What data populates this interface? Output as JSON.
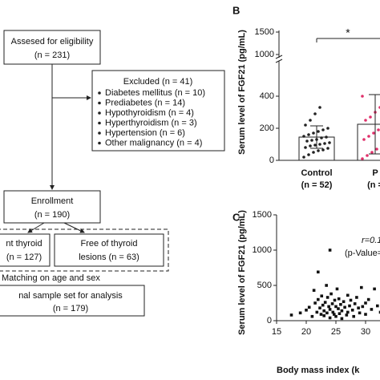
{
  "flowchart": {
    "nodes": [
      {
        "lines": [
          "Assesed for eligibility",
          "(n = 231)"
        ]
      },
      {
        "title": "Excluded (n = 41)",
        "items": [
          "Diabetes mellitus (n = 10)",
          "Prediabetes (n = 14)",
          "Hypothyroidism (n = 4)",
          "Hyperthyroidism (n = 3)",
          "Hypertension (n = 6)",
          "Other malignancy (n = 4)"
        ]
      },
      {
        "lines": [
          "Enrollment",
          "(n = 190)"
        ]
      },
      {
        "lines": [
          "nt thyroid",
          "(n = 127)"
        ]
      },
      {
        "lines": [
          "Free of thyroid",
          "lesions (n = 63)"
        ]
      },
      {
        "lines": [
          "nal sample set for analysis",
          "(n = 179)"
        ]
      }
    ],
    "matching": "Matching on age and sex"
  },
  "chart_data": [
    {
      "type": "bar",
      "panel": "B",
      "y_label": "Serum level of FGF21 (pg/mL)",
      "categories": [
        "Control",
        "P"
      ],
      "sublabels": [
        "(n = 52)",
        "(n ="
      ],
      "values": [
        145,
        225
      ],
      "errors": [
        70,
        185
      ],
      "colors": [
        "#222222",
        "#e0306a"
      ],
      "points": [
        [
          20,
          35,
          50,
          60,
          65,
          75,
          80,
          90,
          95,
          100,
          105,
          110,
          120,
          125,
          130,
          140,
          145,
          150,
          160,
          170,
          180,
          190,
          200,
          220,
          250,
          290,
          330
        ],
        [
          10,
          30,
          50,
          70,
          90,
          110,
          130,
          150,
          170,
          190,
          210,
          230,
          250,
          270,
          300,
          330,
          360,
          400
        ]
      ],
      "ylim": [
        0,
        1500
      ],
      "axis_break": [
        600,
        1000
      ],
      "yticks": [
        0,
        200,
        400,
        1000,
        1500
      ],
      "significance": "*"
    },
    {
      "type": "scatter",
      "panel": "C",
      "y_label": "Serum level of FGF21 (pg/mL)",
      "x_label": "Body mass index (k",
      "annotations": [
        "r=0.1",
        "(p-Value="
      ],
      "color": "#111111",
      "x": [
        17.5,
        19,
        20,
        20.5,
        21,
        21.3,
        21.5,
        21.8,
        22,
        22,
        22.3,
        22.5,
        22.6,
        22.8,
        23,
        23,
        23.2,
        23.4,
        23.5,
        23.6,
        23.8,
        24,
        24,
        24,
        24.2,
        24.4,
        24.5,
        24.7,
        24.8,
        25,
        25,
        25.2,
        25.4,
        25.5,
        25.6,
        25.8,
        26,
        26,
        26.3,
        26.5,
        26.8,
        27,
        27,
        27.3,
        27.5,
        27.8,
        28,
        28.2,
        28.5,
        28.8,
        29,
        29.3,
        29.5,
        30,
        30,
        30.5,
        31,
        31.5,
        32,
        32.5
      ],
      "y": [
        80,
        110,
        150,
        190,
        60,
        430,
        250,
        120,
        690,
        300,
        180,
        90,
        350,
        220,
        140,
        70,
        260,
        500,
        110,
        330,
        200,
        1000,
        160,
        40,
        380,
        240,
        120,
        90,
        290,
        200,
        60,
        450,
        170,
        310,
        100,
        230,
        140,
        30,
        270,
        190,
        80,
        360,
        120,
        210,
        290,
        150,
        60,
        240,
        330,
        180,
        110,
        470,
        200,
        250,
        90,
        300,
        160,
        450,
        210,
        120
      ],
      "xlim": [
        15,
        33
      ],
      "xticks": [
        15,
        20,
        25,
        30
      ],
      "ylim": [
        0,
        1500
      ],
      "yticks": [
        0,
        500,
        1000,
        1500
      ]
    }
  ]
}
